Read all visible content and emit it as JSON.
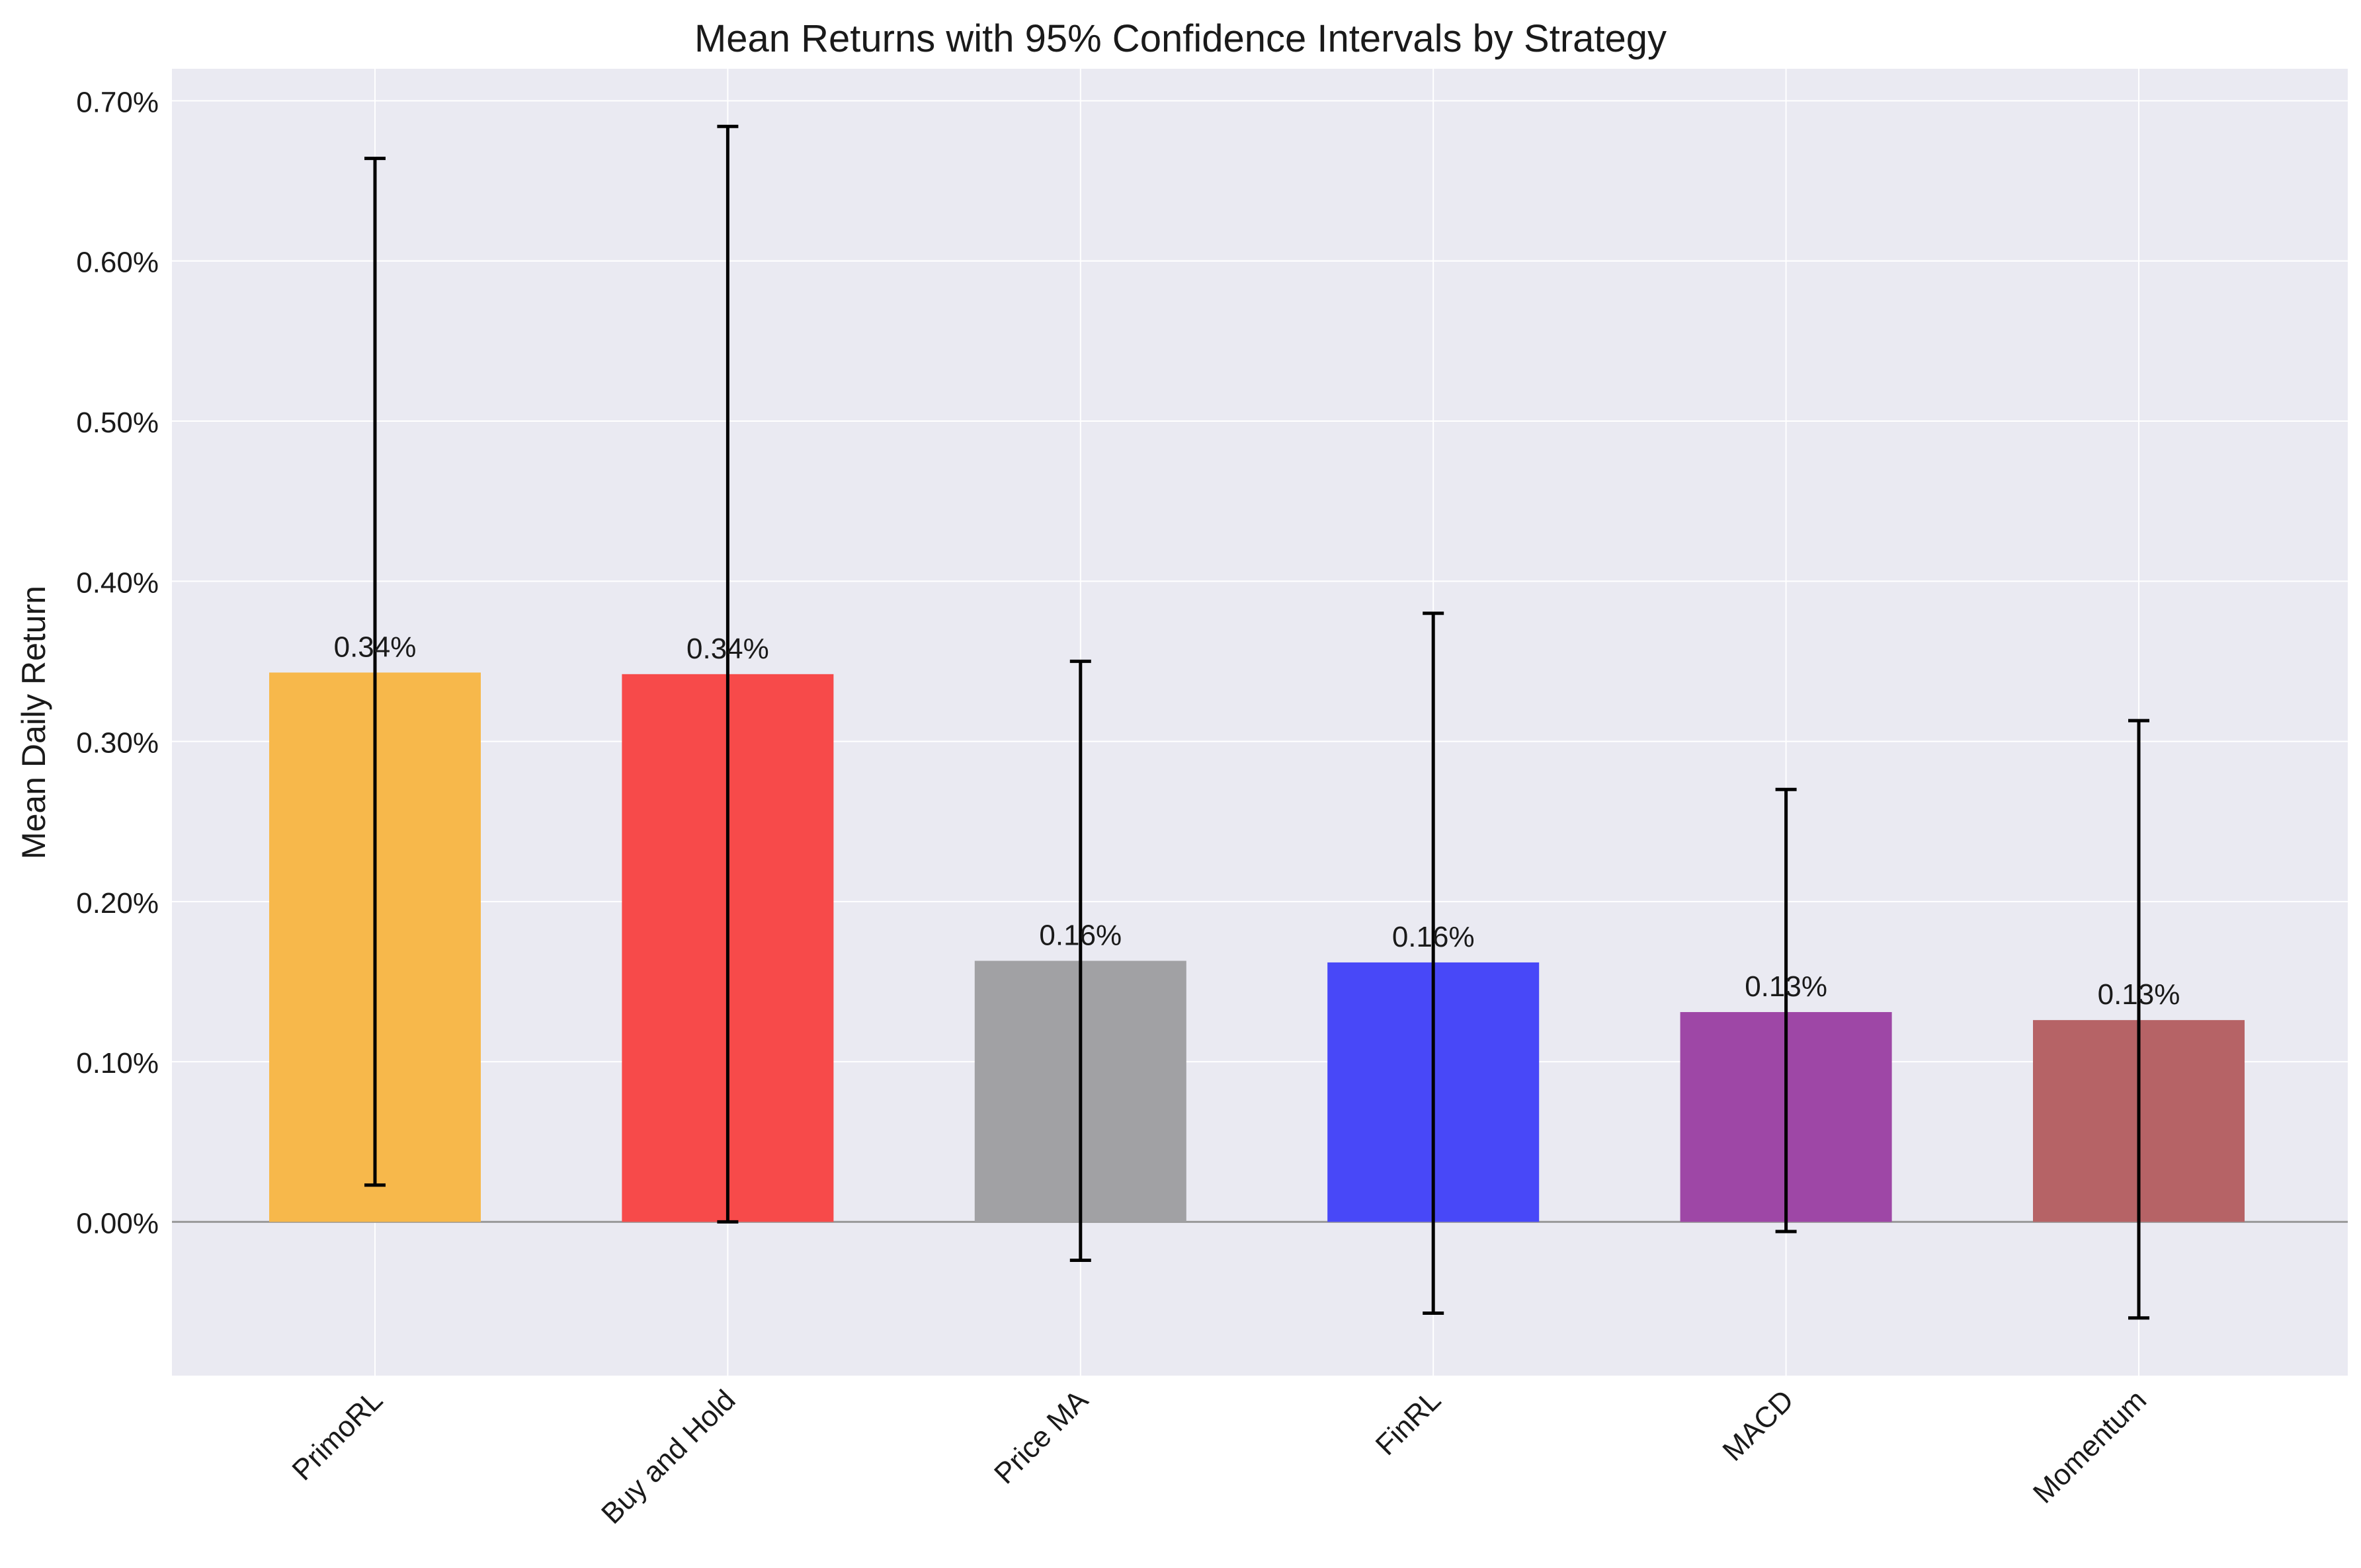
{
  "chart_data": {
    "type": "bar",
    "title": "Mean Returns with 95% Confidence Intervals by Strategy",
    "xlabel": "",
    "ylabel": "Mean Daily Return",
    "categories": [
      "PrimoRL",
      "Buy and Hold",
      "Price MA",
      "FinRL",
      "MACD",
      "Momentum"
    ],
    "values": [
      0.343,
      0.342,
      0.163,
      0.162,
      0.131,
      0.126
    ],
    "value_labels": [
      "0.34%",
      "0.34%",
      "0.16%",
      "0.16%",
      "0.13%",
      "0.13%"
    ],
    "ci_lower": [
      0.023,
      0.0,
      -0.024,
      -0.057,
      -0.006,
      -0.06
    ],
    "ci_upper": [
      0.664,
      0.684,
      0.35,
      0.38,
      0.27,
      0.313
    ],
    "colors": [
      "#f7b84b",
      "#f74a4a",
      "#a1a1a4",
      "#4848f8",
      "#9e47a6",
      "#b66366"
    ],
    "ylim": [
      -0.096,
      0.72
    ],
    "yticks": [
      0.0,
      0.1,
      0.2,
      0.3,
      0.4,
      0.5,
      0.6,
      0.7
    ],
    "ytick_labels": [
      "0.00%",
      "0.10%",
      "0.20%",
      "0.30%",
      "0.40%",
      "0.50%",
      "0.60%",
      "0.70%"
    ],
    "grid": true,
    "zero_line": true,
    "background": "#eaeaf2"
  }
}
